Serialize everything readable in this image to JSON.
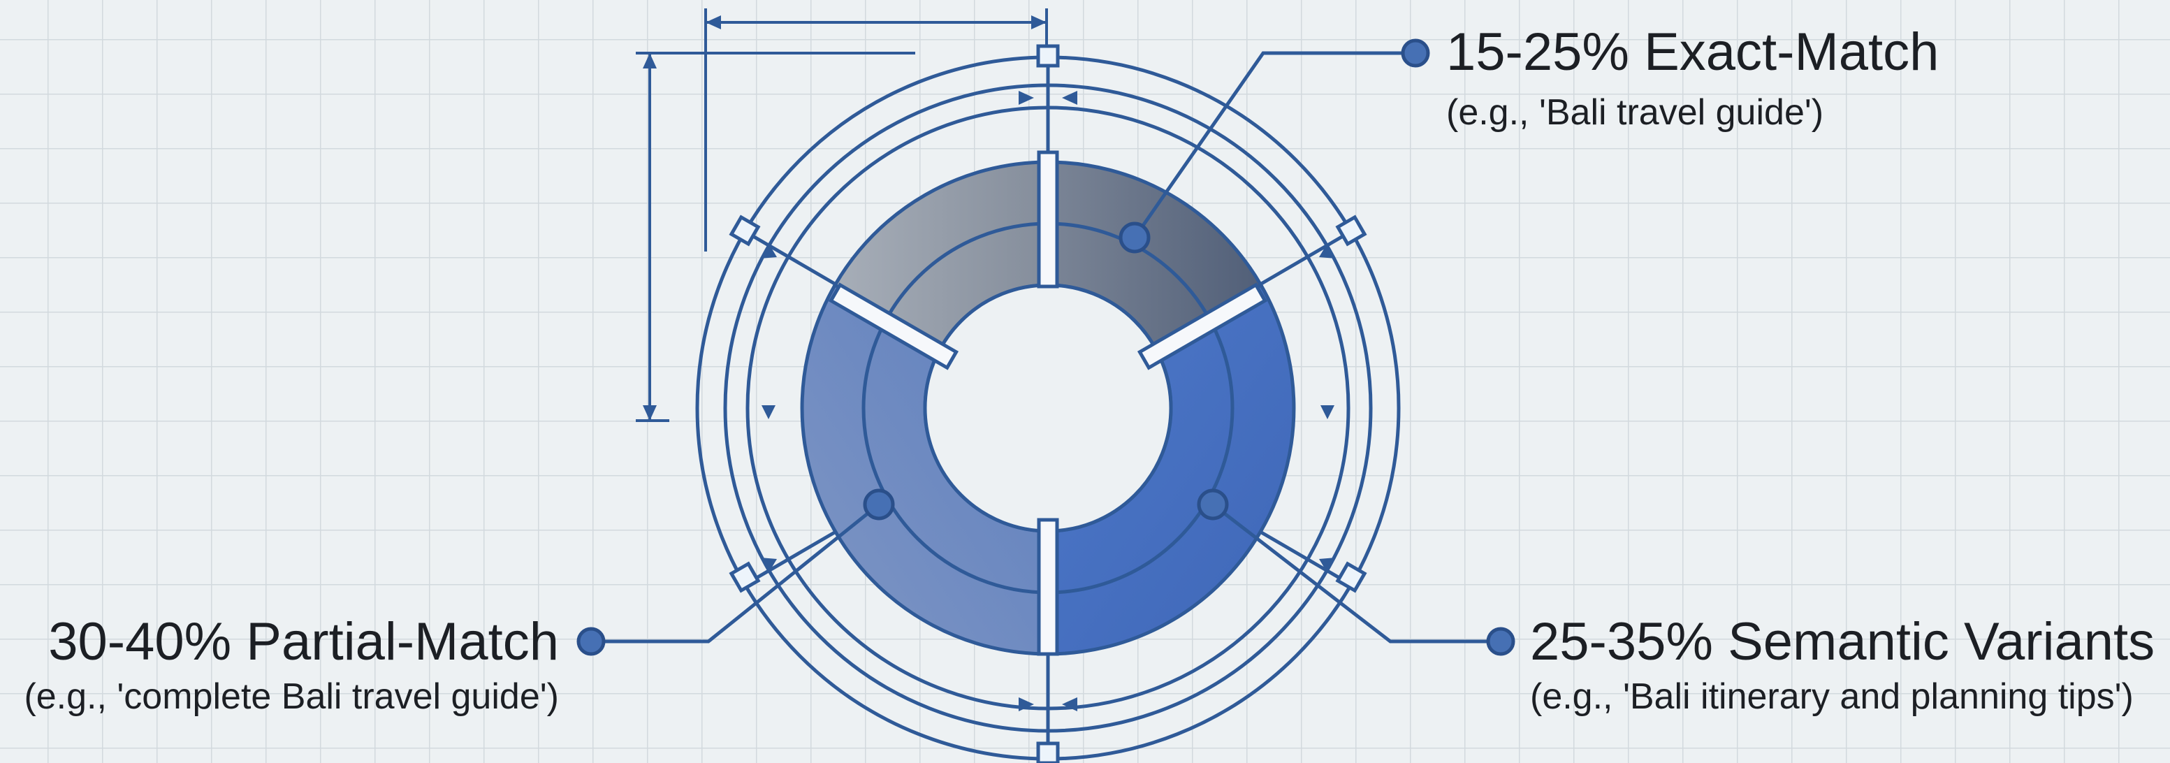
{
  "segments": [
    {
      "id": "exact",
      "label": "15-25% Exact-Match",
      "example": "(e.g., 'Bali travel guide')",
      "color": "#5f6d84"
    },
    {
      "id": "semantic",
      "label": "25-35% Semantic Variants",
      "example": "(e.g., 'Bali itinerary and planning tips')",
      "color": "#4a72c2"
    },
    {
      "id": "partial",
      "label": "30-40% Partial-Match",
      "example": "(e.g., 'complete Bali travel guide')",
      "color": "#6a86b9"
    }
  ],
  "colors": {
    "background": "#edf1f3",
    "grid": "#d2d9de",
    "line": "#2f5a98",
    "text": "#1c1f24"
  }
}
